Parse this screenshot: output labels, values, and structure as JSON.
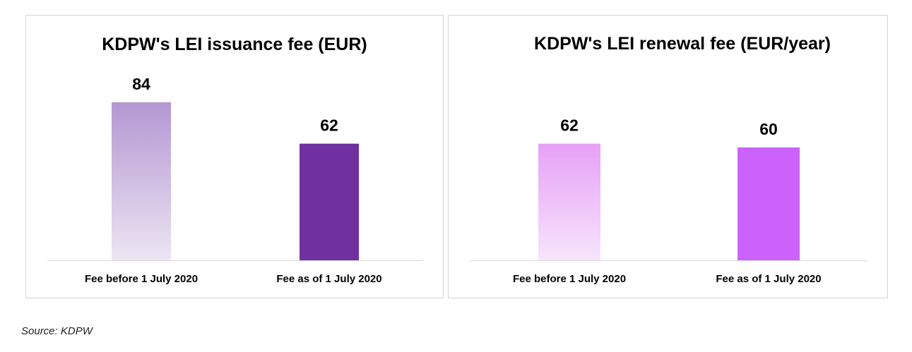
{
  "chart_data": [
    {
      "type": "bar",
      "title": "KDPW's LEI issuance fee (EUR)",
      "categories": [
        "Fee before 1 July 2020",
        "Fee as of 1 July 2020"
      ],
      "values": [
        84,
        62
      ],
      "data_labels": [
        "84",
        "62"
      ],
      "xlabel": "",
      "ylabel": "",
      "ylim": [
        0,
        84
      ],
      "grid": false,
      "colors": [
        "#b497d2",
        "#70309f"
      ]
    },
    {
      "type": "bar",
      "title": "KDPW's LEI renewal fee (EUR/year)",
      "categories": [
        "Fee before 1 July 2020",
        "Fee as of 1 July 2020"
      ],
      "values": [
        62,
        60
      ],
      "data_labels": [
        "62",
        "60"
      ],
      "xlabel": "",
      "ylabel": "",
      "ylim": [
        0,
        84
      ],
      "grid": false,
      "colors": [
        "#e7a0f6",
        "#cb63fb"
      ]
    }
  ],
  "source": "Source: KDPW"
}
